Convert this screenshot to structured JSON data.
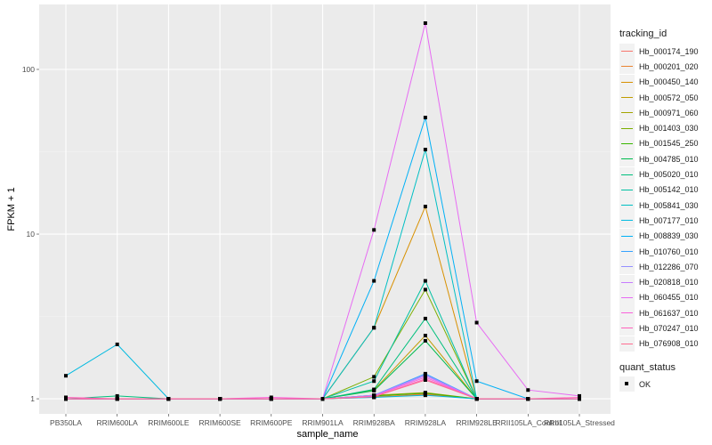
{
  "chart_data": {
    "type": "line",
    "title": "",
    "xlabel": "sample_name",
    "ylabel": "FPKM + 1",
    "y_scale": "log10",
    "ylim": [
      0.81,
      248
    ],
    "y_ticks": [
      1,
      10,
      100
    ],
    "y_tick_labels": [
      "1",
      "10",
      "100"
    ],
    "grid": true,
    "categories": [
      "PB350LA",
      "RRIM600LA",
      "RRIM600LE",
      "RRIM600SE",
      "RRIM600PE",
      "RRIM901LA",
      "RRIM928BA",
      "RRIM928LA",
      "RRIM928LE",
      "RRII105LA_Control",
      "RRII105LA_Stressed"
    ],
    "legend": {
      "title": "tracking_id",
      "placement": "right"
    },
    "shape_legend": {
      "title": "quant_status",
      "items": [
        "OK"
      ]
    },
    "series": [
      {
        "name": "Hb_000174_190",
        "color": "#F8766D",
        "values": [
          1,
          1,
          1,
          1,
          1,
          1,
          1.02,
          1.07,
          1,
          1,
          1
        ]
      },
      {
        "name": "Hb_000201_020",
        "color": "#EA8331",
        "values": [
          1,
          1,
          1,
          1,
          1,
          1,
          1.03,
          1.06,
          1,
          1,
          1
        ]
      },
      {
        "name": "Hb_000450_140",
        "color": "#D89000",
        "values": [
          1,
          1,
          1,
          1,
          1,
          1,
          2.7,
          14.7,
          1,
          1,
          1
        ]
      },
      {
        "name": "Hb_000572_050",
        "color": "#C09B00",
        "values": [
          1,
          1,
          1,
          1,
          1,
          1,
          1.13,
          2.42,
          1,
          1,
          1
        ]
      },
      {
        "name": "Hb_000971_060",
        "color": "#A3A500",
        "values": [
          1,
          1,
          1,
          1,
          1,
          1,
          1.05,
          1.09,
          1,
          1,
          1
        ]
      },
      {
        "name": "Hb_001403_030",
        "color": "#7CAE00",
        "values": [
          1,
          1,
          1,
          1,
          1,
          1,
          1.36,
          4.6,
          1,
          1,
          1
        ]
      },
      {
        "name": "Hb_001545_250",
        "color": "#39B600",
        "values": [
          1,
          1,
          1,
          1,
          1,
          1,
          1.04,
          1.08,
          1,
          1,
          1
        ]
      },
      {
        "name": "Hb_004785_010",
        "color": "#00BB4E",
        "values": [
          1,
          1,
          1,
          1,
          1,
          1,
          1.12,
          2.25,
          1,
          1,
          1
        ]
      },
      {
        "name": "Hb_005020_010",
        "color": "#00BF7D",
        "values": [
          1,
          1.04,
          1,
          1,
          1,
          1,
          1.14,
          3.07,
          1,
          1,
          1
        ]
      },
      {
        "name": "Hb_005142_010",
        "color": "#00C1A3",
        "values": [
          1,
          1,
          1,
          1,
          1,
          1,
          1.28,
          5.2,
          1,
          1,
          1
        ]
      },
      {
        "name": "Hb_005841_030",
        "color": "#00BFC4",
        "values": [
          1,
          1,
          1,
          1,
          1,
          1,
          2.7,
          32.6,
          1,
          1,
          1
        ]
      },
      {
        "name": "Hb_007177_010",
        "color": "#00BAE0",
        "values": [
          1.38,
          2.14,
          1,
          1,
          1,
          1,
          1.02,
          1.05,
          1,
          1,
          1
        ]
      },
      {
        "name": "Hb_008839_030",
        "color": "#00B0F6",
        "values": [
          1,
          1,
          1,
          1,
          1,
          1,
          5.2,
          51,
          1.28,
          1,
          1
        ]
      },
      {
        "name": "Hb_010760_010",
        "color": "#35A2FF",
        "values": [
          1,
          1,
          1,
          1,
          1,
          1,
          1.05,
          1.42,
          1,
          1,
          1
        ]
      },
      {
        "name": "Hb_012286_070",
        "color": "#9590FF",
        "values": [
          1,
          1,
          1,
          1,
          1,
          1,
          1.05,
          1.4,
          1,
          1,
          1
        ]
      },
      {
        "name": "Hb_020818_010",
        "color": "#C77CFF",
        "values": [
          1,
          1,
          1,
          1,
          1,
          1,
          1.04,
          1.38,
          1,
          1,
          1
        ]
      },
      {
        "name": "Hb_060455_010",
        "color": "#E76BF3",
        "values": [
          1,
          1,
          1,
          1,
          1,
          1,
          10.6,
          191,
          2.9,
          1.13,
          1.04
        ]
      },
      {
        "name": "Hb_061637_010",
        "color": "#FA62DB",
        "values": [
          1,
          1,
          1,
          1,
          1.02,
          1,
          1.04,
          1.35,
          1,
          1,
          1
        ]
      },
      {
        "name": "Hb_070247_010",
        "color": "#FF62BC",
        "values": [
          1.02,
          1,
          1,
          1,
          1,
          1,
          1.03,
          1.32,
          1,
          1,
          1.02
        ]
      },
      {
        "name": "Hb_076908_010",
        "color": "#FF6C91",
        "values": [
          1,
          1,
          1,
          1,
          1,
          1,
          1.03,
          1.3,
          1,
          1,
          1
        ]
      }
    ]
  }
}
